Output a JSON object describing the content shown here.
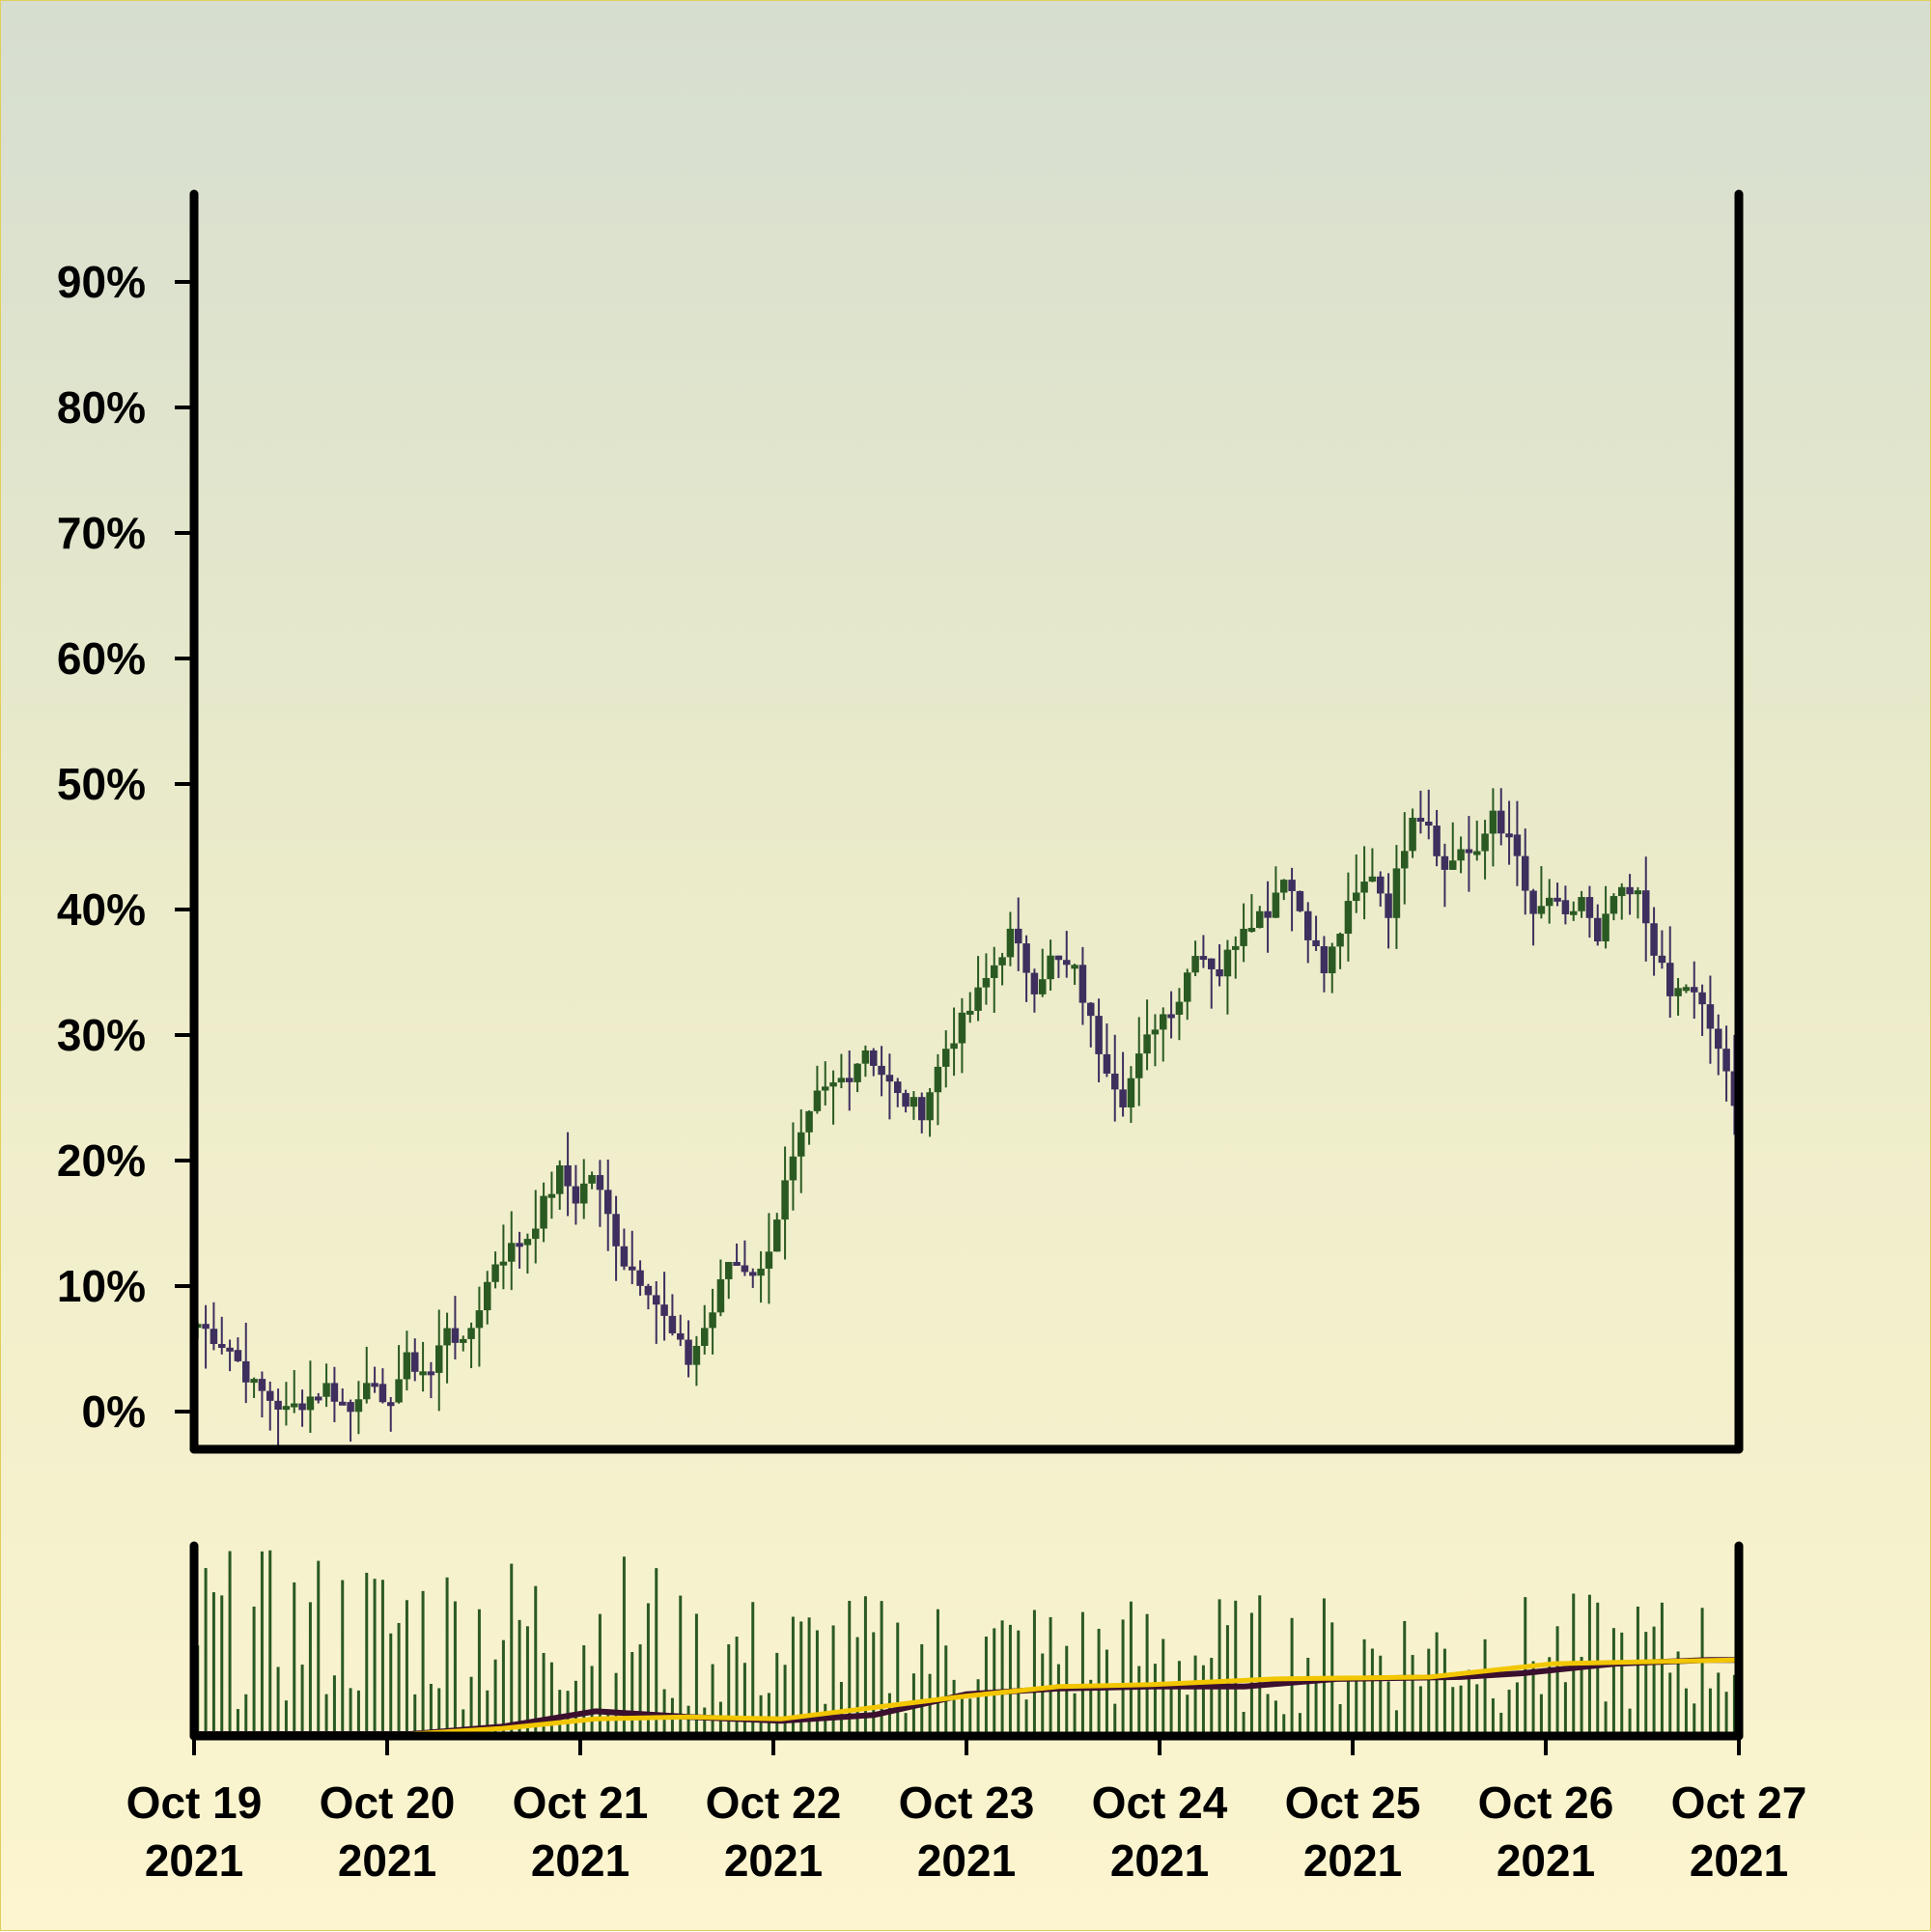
{
  "colors": {
    "up": "#2a5a22",
    "down": "#3e2f5e",
    "volume": "#2a5a22",
    "ma_fast": "#3b0f2e",
    "ma_slow": "#f2c600",
    "axis": "#000000"
  },
  "chart_data": {
    "type": "candlestick",
    "title": "",
    "xlabel": "",
    "ylabel": "",
    "ylim": [
      -3,
      97
    ],
    "y_format": "percent",
    "y_ticks": [
      0,
      10,
      20,
      30,
      40,
      50,
      60,
      70,
      80,
      90
    ],
    "y_tick_labels": [
      "0%",
      "10%",
      "20%",
      "30%",
      "40%",
      "50%",
      "60%",
      "70%",
      "80%",
      "90%"
    ],
    "x_range": [
      "2021-10-19",
      "2021-10-27"
    ],
    "x_ticks": [
      {
        "date": "2021-10-19",
        "line1": "Oct 19",
        "line2": "2021"
      },
      {
        "date": "2021-10-20",
        "line1": "Oct 20",
        "line2": "2021"
      },
      {
        "date": "2021-10-21",
        "line1": "Oct 21",
        "line2": "2021"
      },
      {
        "date": "2021-10-22",
        "line1": "Oct 22",
        "line2": "2021"
      },
      {
        "date": "2021-10-23",
        "line1": "Oct 23",
        "line2": "2021"
      },
      {
        "date": "2021-10-24",
        "line1": "Oct 24",
        "line2": "2021"
      },
      {
        "date": "2021-10-25",
        "line1": "Oct 25",
        "line2": "2021"
      },
      {
        "date": "2021-10-26",
        "line1": "Oct 26",
        "line2": "2021"
      },
      {
        "date": "2021-10-27",
        "line1": "Oct 27",
        "line2": "2021"
      }
    ],
    "close_path": [
      [
        "2021-10-19 00:00",
        7
      ],
      [
        "2021-10-19 04:00",
        5
      ],
      [
        "2021-10-19 07:00",
        2
      ],
      [
        "2021-10-19 11:00",
        0
      ],
      [
        "2021-10-19 16:00",
        2
      ],
      [
        "2021-10-19 19:00",
        0
      ],
      [
        "2021-10-19 21:00",
        3
      ],
      [
        "2021-10-19 23:00",
        0
      ],
      [
        "2021-10-20 02:00",
        4
      ],
      [
        "2021-10-20 05:00",
        3
      ],
      [
        "2021-10-20 07:00",
        7
      ],
      [
        "2021-10-20 09:00",
        5
      ],
      [
        "2021-10-20 13:00",
        12
      ],
      [
        "2021-10-20 17:00",
        14
      ],
      [
        "2021-10-20 21:00",
        19
      ],
      [
        "2021-10-20 23:00",
        17
      ],
      [
        "2021-10-21 01:00",
        19
      ],
      [
        "2021-10-21 05:00",
        12
      ],
      [
        "2021-10-21 08:00",
        10
      ],
      [
        "2021-10-21 11:00",
        6
      ],
      [
        "2021-10-21 13:00",
        4
      ],
      [
        "2021-10-21 16:00",
        8
      ],
      [
        "2021-10-21 18:00",
        12
      ],
      [
        "2021-10-21 22:00",
        11
      ],
      [
        "2021-10-22 01:00",
        18
      ],
      [
        "2021-10-22 05:00",
        25
      ],
      [
        "2021-10-22 09:00",
        27
      ],
      [
        "2021-10-22 11:00",
        29
      ],
      [
        "2021-10-22 15:00",
        25
      ],
      [
        "2021-10-22 18:00",
        24
      ],
      [
        "2021-10-22 21:00",
        29
      ],
      [
        "2021-10-23 00:00",
        32
      ],
      [
        "2021-10-23 05:00",
        38
      ],
      [
        "2021-10-23 08:00",
        34
      ],
      [
        "2021-10-23 10:00",
        36
      ],
      [
        "2021-10-23 13:00",
        35
      ],
      [
        "2021-10-23 16:00",
        29
      ],
      [
        "2021-10-23 19:00",
        25
      ],
      [
        "2021-10-23 23:00",
        31
      ],
      [
        "2021-10-24 02:00",
        33
      ],
      [
        "2021-10-24 04:00",
        37
      ],
      [
        "2021-10-24 07:00",
        35
      ],
      [
        "2021-10-24 10:00",
        39
      ],
      [
        "2021-10-24 13:00",
        40
      ],
      [
        "2021-10-24 15:00",
        43
      ],
      [
        "2021-10-24 17:00",
        40
      ],
      [
        "2021-10-24 20:00",
        35
      ],
      [
        "2021-10-24 23:00",
        40
      ],
      [
        "2021-10-25 02:00",
        43
      ],
      [
        "2021-10-25 04:00",
        40
      ],
      [
        "2021-10-25 07:00",
        48
      ],
      [
        "2021-10-25 09:00",
        47
      ],
      [
        "2021-10-25 11:00",
        43
      ],
      [
        "2021-10-25 13:00",
        45
      ],
      [
        "2021-10-25 15:00",
        44
      ],
      [
        "2021-10-25 17:00",
        48
      ],
      [
        "2021-10-25 20:00",
        44
      ],
      [
        "2021-10-25 22:00",
        39
      ],
      [
        "2021-10-26 00:00",
        41
      ],
      [
        "2021-10-26 02:00",
        39
      ],
      [
        "2021-10-26 04:00",
        41
      ],
      [
        "2021-10-26 06:00",
        37
      ],
      [
        "2021-10-26 08:00",
        41
      ],
      [
        "2021-10-26 11:00",
        41
      ],
      [
        "2021-10-26 13:00",
        37
      ],
      [
        "2021-10-26 15:00",
        33
      ],
      [
        "2021-10-26 17:00",
        34
      ],
      [
        "2021-10-26 19:00",
        32
      ],
      [
        "2021-10-26 21:00",
        29
      ],
      [
        "2021-10-26 23:00",
        24
      ]
    ],
    "volume": {
      "ylim": [
        0,
        100
      ],
      "ma_fast": [
        [
          0,
          1
        ],
        [
          0.08,
          1
        ],
        [
          0.14,
          1
        ],
        [
          0.2,
          5
        ],
        [
          0.26,
          13
        ],
        [
          0.32,
          10
        ],
        [
          0.38,
          8
        ],
        [
          0.44,
          11
        ],
        [
          0.5,
          22
        ],
        [
          0.56,
          25
        ],
        [
          0.62,
          26
        ],
        [
          0.68,
          26
        ],
        [
          0.74,
          30
        ],
        [
          0.82,
          31
        ],
        [
          0.86,
          33
        ],
        [
          0.92,
          38
        ],
        [
          0.98,
          40
        ],
        [
          1.0,
          40
        ]
      ],
      "ma_slow": [
        [
          0,
          1
        ],
        [
          0.14,
          1
        ],
        [
          0.2,
          4
        ],
        [
          0.26,
          9
        ],
        [
          0.32,
          10
        ],
        [
          0.38,
          9
        ],
        [
          0.44,
          15
        ],
        [
          0.5,
          21
        ],
        [
          0.56,
          26
        ],
        [
          0.62,
          27
        ],
        [
          0.7,
          30
        ],
        [
          0.8,
          31
        ],
        [
          0.88,
          38
        ],
        [
          1.0,
          40
        ]
      ]
    }
  }
}
